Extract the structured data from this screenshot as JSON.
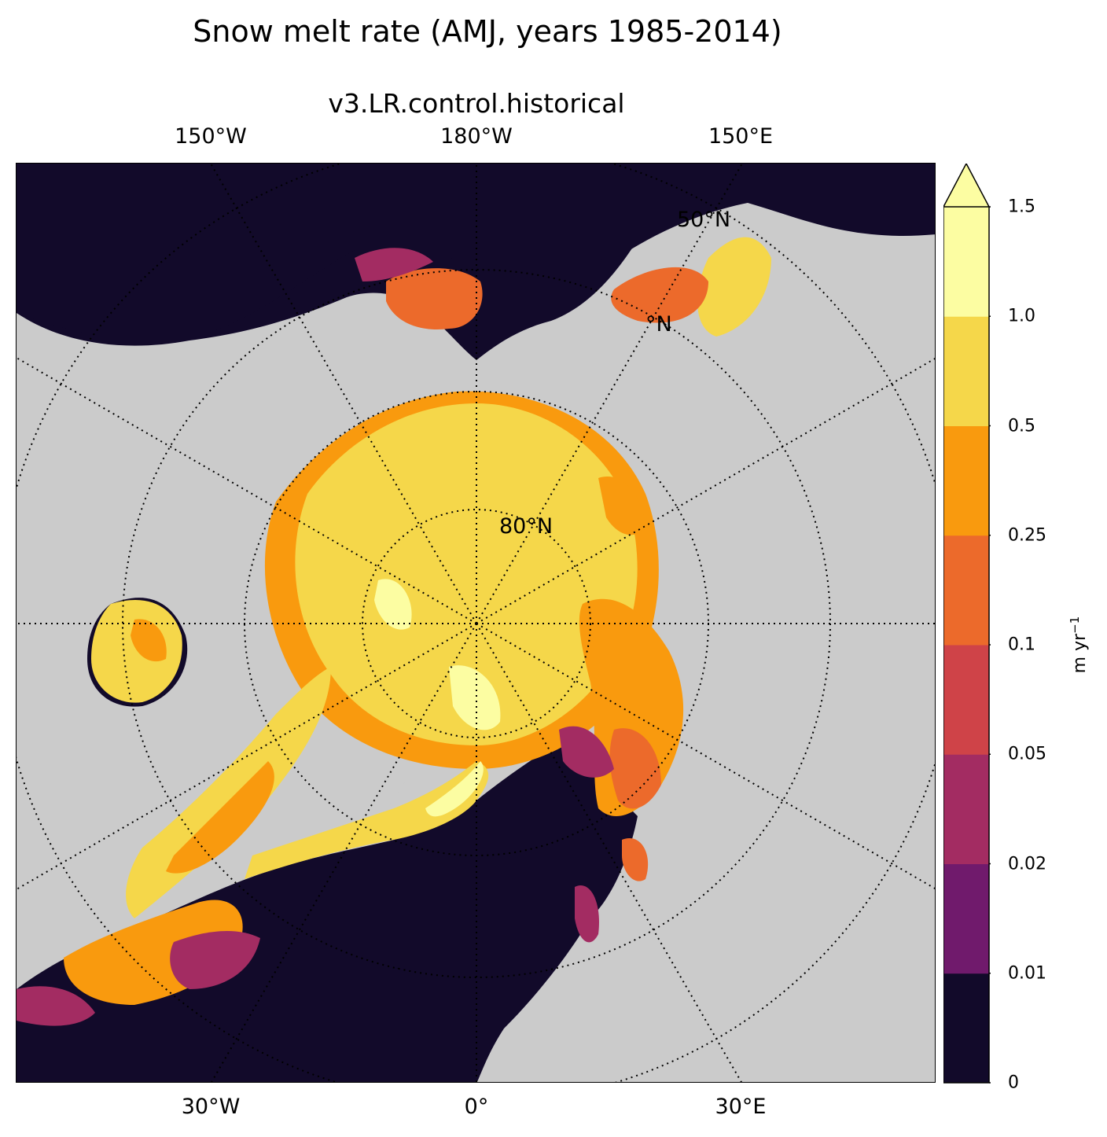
{
  "title": "Snow melt rate (AMJ, years 1985-2014)",
  "subtitle": "v3.LR.control.historical",
  "map": {
    "projection": "north polar stereographic",
    "top_lon_labels": [
      "150°W",
      "180°W",
      "150°E"
    ],
    "bottom_lon_labels": [
      "30°W",
      "0°",
      "30°E"
    ],
    "lat_labels": [
      "50°N",
      "°N",
      "80°N"
    ],
    "land_color": "#cbcbcb",
    "background_color": "#120a2a"
  },
  "colorbar": {
    "label": "m yr",
    "label_exponent": "−1",
    "extend": "max",
    "ticks": [
      "0",
      "0.01",
      "0.02",
      "0.05",
      "0.1",
      "0.25",
      "0.5",
      "1.0",
      "1.5"
    ],
    "colors": [
      "#120a2a",
      "#701a6c",
      "#a32c62",
      "#cf4348",
      "#ec6a2b",
      "#f99a0e",
      "#f5d74a",
      "#fcfda2"
    ],
    "extend_color": "#fcfda2"
  }
}
